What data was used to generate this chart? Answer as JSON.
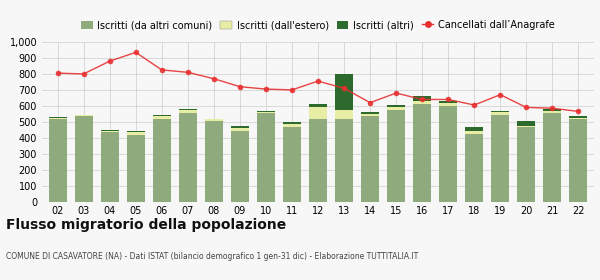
{
  "years": [
    "02",
    "03",
    "04",
    "05",
    "06",
    "07",
    "08",
    "09",
    "10",
    "11",
    "12",
    "13",
    "14",
    "15",
    "16",
    "17",
    "18",
    "19",
    "20",
    "21",
    "22"
  ],
  "iscritti_comuni": [
    520,
    535,
    435,
    420,
    520,
    555,
    505,
    445,
    555,
    465,
    520,
    520,
    535,
    575,
    610,
    600,
    425,
    545,
    465,
    555,
    520
  ],
  "iscritti_estero": [
    5,
    5,
    10,
    15,
    15,
    20,
    10,
    15,
    5,
    20,
    75,
    55,
    15,
    20,
    20,
    15,
    20,
    15,
    10,
    15,
    5
  ],
  "iscritti_altri": [
    5,
    5,
    5,
    5,
    5,
    5,
    5,
    15,
    5,
    15,
    15,
    225,
    10,
    10,
    30,
    15,
    20,
    10,
    30,
    10,
    10
  ],
  "cancellati": [
    805,
    800,
    880,
    935,
    825,
    810,
    770,
    720,
    705,
    700,
    755,
    710,
    620,
    680,
    640,
    640,
    605,
    670,
    590,
    585,
    565
  ],
  "bar_color_comuni": "#8faa7c",
  "bar_color_estero": "#e8eda6",
  "bar_color_altri": "#2d6a2d",
  "line_color": "#e83030",
  "line_dot_color": "#e83030",
  "bg_color": "#f7f7f7",
  "grid_color": "#cccccc",
  "title": "Flusso migratorio della popolazione",
  "subtitle": "COMUNE DI CASAVATORE (NA) - Dati ISTAT (bilancio demografico 1 gen-31 dic) - Elaborazione TUTTITALIA.IT",
  "legend_labels": [
    "Iscritti (da altri comuni)",
    "Iscritti (dall'estero)",
    "Iscritti (altri)",
    "Cancellati dall’Anagrafe"
  ],
  "ylim": [
    0,
    1000
  ],
  "yticks": [
    0,
    100,
    200,
    300,
    400,
    500,
    600,
    700,
    800,
    900,
    1000
  ]
}
